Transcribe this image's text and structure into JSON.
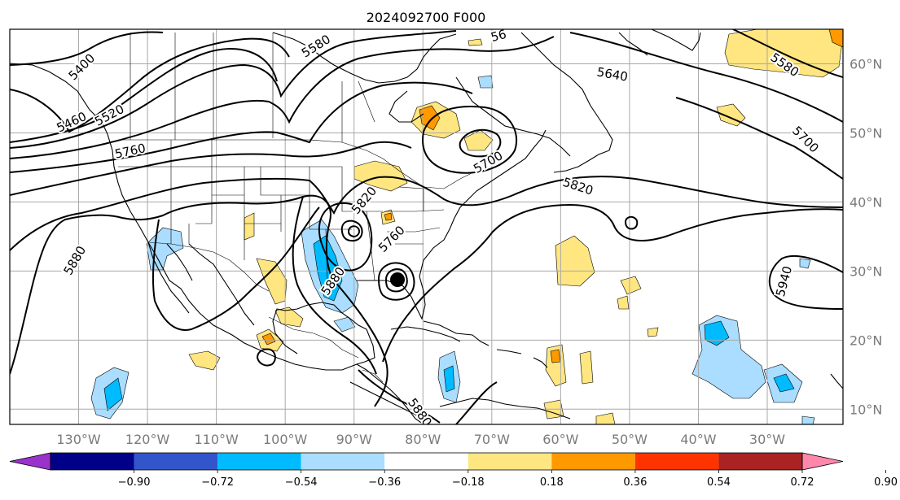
{
  "title": "2024092700 F000",
  "map": {
    "lon_range": [
      -140,
      -19
    ],
    "lat_range": [
      7.8,
      65
    ],
    "lon_ticks": [
      {
        "lon": -130,
        "label": "130°W"
      },
      {
        "lon": -120,
        "label": "120°W"
      },
      {
        "lon": -110,
        "label": "110°W"
      },
      {
        "lon": -100,
        "label": "100°W"
      },
      {
        "lon": -90,
        "label": "90°W"
      },
      {
        "lon": -80,
        "label": "80°W"
      },
      {
        "lon": -70,
        "label": "70°W"
      },
      {
        "lon": -60,
        "label": "60°W"
      },
      {
        "lon": -50,
        "label": "50°W"
      },
      {
        "lon": -40,
        "label": "40°W"
      },
      {
        "lon": -30,
        "label": "30°W"
      }
    ],
    "lat_ticks": [
      {
        "lat": 60,
        "label": "60°N"
      },
      {
        "lat": 50,
        "label": "50°N"
      },
      {
        "lat": 40,
        "label": "40°N"
      },
      {
        "lat": 30,
        "label": "30°N"
      },
      {
        "lat": 20,
        "label": "20°N"
      },
      {
        "lat": 10,
        "label": "10°N"
      }
    ]
  },
  "contour_labels": [
    {
      "text": "5400",
      "lon": -129.5,
      "lat": 59.5,
      "rot": -45
    },
    {
      "text": "5460",
      "lon": -131,
      "lat": 51.5,
      "rot": -25
    },
    {
      "text": "5520",
      "lon": -125.5,
      "lat": 52.5,
      "rot": -28
    },
    {
      "text": "5580",
      "lon": -95.5,
      "lat": 62.5,
      "rot": -32
    },
    {
      "text": "5760",
      "lon": -122.5,
      "lat": 47.3,
      "rot": -12
    },
    {
      "text": "5820",
      "lon": -88.5,
      "lat": 40.2,
      "rot": -50
    },
    {
      "text": "5760",
      "lon": -84.5,
      "lat": 34.6,
      "rot": -45
    },
    {
      "text": "5880",
      "lon": -93,
      "lat": 28.5,
      "rot": -55
    },
    {
      "text": "5880",
      "lon": -130.5,
      "lat": 31.5,
      "rot": -60
    },
    {
      "text": "5880",
      "lon": -80.5,
      "lat": 9.5,
      "rot": 55
    },
    {
      "text": "5700",
      "lon": -70.5,
      "lat": 45.7,
      "rot": -30
    },
    {
      "text": "5820",
      "lon": -57.5,
      "lat": 42.2,
      "rot": 18
    },
    {
      "text": "5640",
      "lon": -52.5,
      "lat": 58.4,
      "rot": 10
    },
    {
      "text": "5580",
      "lon": -27.5,
      "lat": 59.8,
      "rot": 35
    },
    {
      "text": "5700",
      "lon": -24.5,
      "lat": 49,
      "rot": 45
    },
    {
      "text": "5940",
      "lon": -27.5,
      "lat": 28.5,
      "rot": -75
    },
    {
      "text": "56",
      "lon": -69,
      "lat": 64,
      "rot": -15
    }
  ],
  "colorbar": {
    "colors": [
      "#9933cc",
      "#000088",
      "#3355cc",
      "#00bbff",
      "#aaddff",
      "#ffffff",
      "#ffe680",
      "#ff9900",
      "#ff3300",
      "#aa2222",
      "#ff88aa"
    ],
    "tick_labels": [
      "−0.90",
      "−0.72",
      "−0.54",
      "−0.36",
      "−0.18",
      "0.18",
      "0.36",
      "0.54",
      "0.72",
      "0.90"
    ]
  }
}
